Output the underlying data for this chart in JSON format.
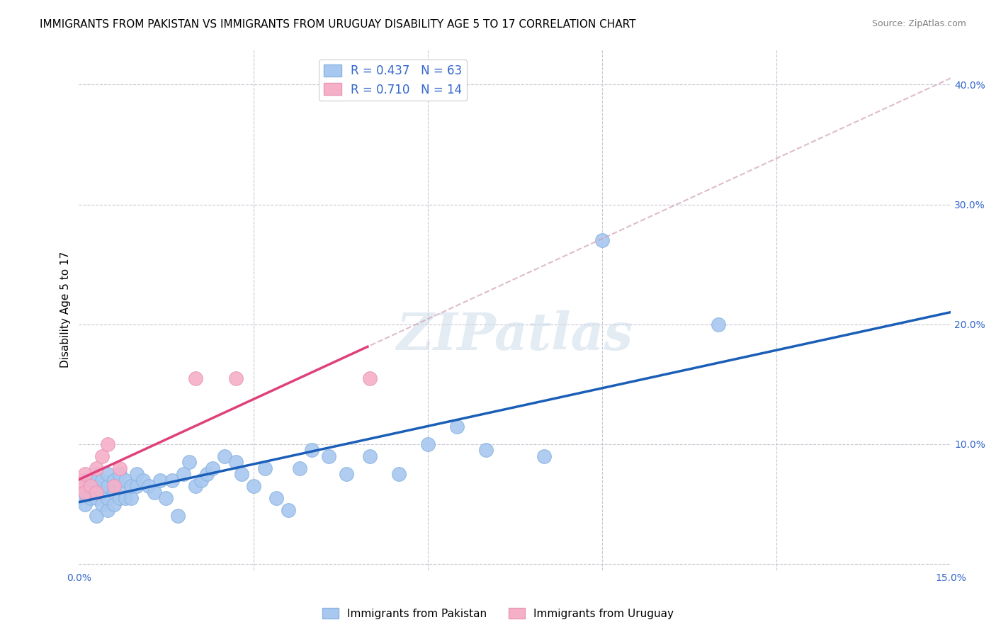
{
  "title": "IMMIGRANTS FROM PAKISTAN VS IMMIGRANTS FROM URUGUAY DISABILITY AGE 5 TO 17 CORRELATION CHART",
  "source": "Source: ZipAtlas.com",
  "ylabel": "Disability Age 5 to 17",
  "xlim": [
    0.0,
    0.15
  ],
  "ylim": [
    -0.005,
    0.43
  ],
  "xticks": [
    0.0,
    0.03,
    0.06,
    0.09,
    0.12,
    0.15
  ],
  "xtick_labels": [
    "0.0%",
    "",
    "",
    "",
    "",
    "15.0%"
  ],
  "yticks": [
    0.0,
    0.1,
    0.2,
    0.3,
    0.4
  ],
  "ytick_labels": [
    "",
    "10.0%",
    "20.0%",
    "30.0%",
    "40.0%"
  ],
  "pakistan_x": [
    0.0,
    0.0,
    0.001,
    0.001,
    0.001,
    0.002,
    0.002,
    0.002,
    0.003,
    0.003,
    0.003,
    0.003,
    0.004,
    0.004,
    0.004,
    0.005,
    0.005,
    0.005,
    0.005,
    0.006,
    0.006,
    0.006,
    0.007,
    0.007,
    0.007,
    0.008,
    0.008,
    0.009,
    0.009,
    0.01,
    0.01,
    0.011,
    0.012,
    0.013,
    0.014,
    0.015,
    0.016,
    0.017,
    0.018,
    0.019,
    0.02,
    0.021,
    0.022,
    0.023,
    0.025,
    0.027,
    0.028,
    0.03,
    0.032,
    0.034,
    0.036,
    0.038,
    0.04,
    0.043,
    0.046,
    0.05,
    0.055,
    0.06,
    0.065,
    0.07,
    0.08,
    0.09,
    0.11
  ],
  "pakistan_y": [
    0.055,
    0.065,
    0.05,
    0.06,
    0.07,
    0.055,
    0.065,
    0.07,
    0.04,
    0.055,
    0.065,
    0.075,
    0.05,
    0.06,
    0.07,
    0.045,
    0.055,
    0.065,
    0.075,
    0.05,
    0.06,
    0.07,
    0.055,
    0.065,
    0.075,
    0.055,
    0.07,
    0.055,
    0.065,
    0.065,
    0.075,
    0.07,
    0.065,
    0.06,
    0.07,
    0.055,
    0.07,
    0.04,
    0.075,
    0.085,
    0.065,
    0.07,
    0.075,
    0.08,
    0.09,
    0.085,
    0.075,
    0.065,
    0.08,
    0.055,
    0.045,
    0.08,
    0.095,
    0.09,
    0.075,
    0.09,
    0.075,
    0.1,
    0.115,
    0.095,
    0.09,
    0.27,
    0.2
  ],
  "uruguay_x": [
    0.0,
    0.0,
    0.001,
    0.001,
    0.002,
    0.003,
    0.003,
    0.004,
    0.005,
    0.006,
    0.007,
    0.02,
    0.027,
    0.05
  ],
  "uruguay_y": [
    0.065,
    0.07,
    0.06,
    0.075,
    0.065,
    0.06,
    0.08,
    0.09,
    0.1,
    0.065,
    0.08,
    0.155,
    0.155,
    0.155
  ],
  "pakistan_line_color": "#1a5eb8",
  "uruguay_line_color": "#e0407a",
  "pakistan_scatter_color": "#a8c8f0",
  "uruguay_scatter_color": "#f5b0c8",
  "pakistan_R": 0.437,
  "pakistan_N": 63,
  "uruguay_R": 0.71,
  "uruguay_N": 14,
  "watermark": "ZIPatlas",
  "background_color": "#ffffff",
  "grid_color": "#c8c8d4",
  "title_fontsize": 11,
  "axis_label_fontsize": 11,
  "tick_fontsize": 10,
  "source_fontsize": 9,
  "tick_color": "#3366cc"
}
